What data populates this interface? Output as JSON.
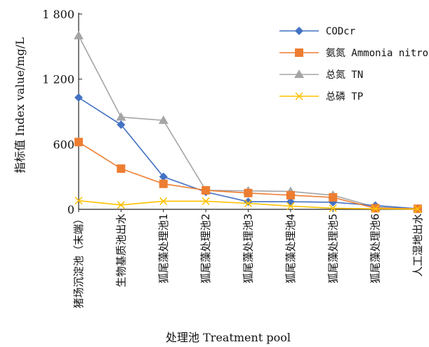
{
  "chart_data": {
    "type": "line",
    "title": "",
    "xlabel": "处理池 Treatment pool",
    "ylabel": "指标值 Index value/mg/L",
    "ylim": [
      0,
      1800
    ],
    "yticks": [
      0,
      600,
      1200,
      1800
    ],
    "ytick_labels": [
      "0",
      "600",
      "1 200",
      "1 800"
    ],
    "grid": false,
    "legend_position": "top-right",
    "categories": [
      "猪场沉淀池（末端）",
      "生物基质池出水",
      "狐尾藻处理池1",
      "狐尾藻处理池2",
      "狐尾藻处理池3",
      "狐尾藻处理池4",
      "狐尾藻处理池5",
      "狐尾藻处理池6",
      "人工湿地出水"
    ],
    "series": [
      {
        "name": "CODcr",
        "color": "#4472C4",
        "marker": "diamond",
        "values": [
          1030,
          780,
          300,
          160,
          70,
          70,
          65,
          35,
          5
        ]
      },
      {
        "name": "氨氮 Ammonia nitrogen",
        "color": "#ED7D31",
        "marker": "square",
        "values": [
          620,
          375,
          235,
          175,
          150,
          130,
          110,
          10,
          5
        ]
      },
      {
        "name": "总氮 TN",
        "color": "#A5A5A5",
        "marker": "triangle",
        "values": [
          1600,
          850,
          820,
          175,
          170,
          165,
          130,
          20,
          5
        ]
      },
      {
        "name": "总磷 TP",
        "color": "#FFC000",
        "marker": "cross",
        "values": [
          80,
          40,
          75,
          75,
          55,
          30,
          10,
          5,
          2
        ]
      }
    ]
  }
}
